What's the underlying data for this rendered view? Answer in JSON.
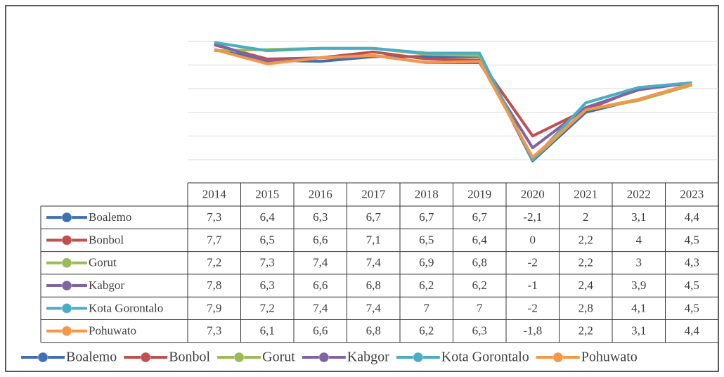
{
  "chart_data": {
    "type": "line",
    "categories": [
      "2014",
      "2015",
      "2016",
      "2017",
      "2018",
      "2019",
      "2020",
      "2021",
      "2022",
      "2023"
    ],
    "ylim": [
      -2,
      10
    ],
    "yticks": [
      -2,
      0,
      2,
      4,
      6,
      8
    ],
    "grid": true,
    "series": [
      {
        "name": "Boalemo",
        "color": "#3f6fb4",
        "values": [
          7.3,
          6.4,
          6.3,
          6.7,
          6.7,
          6.7,
          -2.1,
          2,
          3.1,
          4.4
        ],
        "value_labels": [
          "7,3",
          "6,4",
          "6,3",
          "6,7",
          "6,7",
          "6,7",
          "-2,1",
          "2",
          "3,1",
          "4,4"
        ]
      },
      {
        "name": "Bonbol",
        "color": "#c0504d",
        "values": [
          7.7,
          6.5,
          6.6,
          7.1,
          6.5,
          6.4,
          0,
          2.2,
          4,
          4.5
        ],
        "value_labels": [
          "7,7",
          "6,5",
          "6,6",
          "7,1",
          "6,5",
          "6,4",
          "0",
          "2,2",
          "4",
          "4,5"
        ]
      },
      {
        "name": "Gorut",
        "color": "#9bbb59",
        "values": [
          7.2,
          7.3,
          7.4,
          7.4,
          6.9,
          6.8,
          -2,
          2.2,
          3,
          4.3
        ],
        "value_labels": [
          "7,2",
          "7,3",
          "7,4",
          "7,4",
          "6,9",
          "6,8",
          "-2",
          "2,2",
          "3",
          "4,3"
        ]
      },
      {
        "name": "Kabgor",
        "color": "#8064a2",
        "values": [
          7.8,
          6.3,
          6.6,
          6.8,
          6.2,
          6.2,
          -1,
          2.4,
          3.9,
          4.5
        ],
        "value_labels": [
          "7,8",
          "6,3",
          "6,6",
          "6,8",
          "6,2",
          "6,2",
          "-1",
          "2,4",
          "3,9",
          "4,5"
        ]
      },
      {
        "name": "Kota Gorontalo",
        "color": "#4bacc6",
        "values": [
          7.9,
          7.2,
          7.4,
          7.4,
          7,
          7,
          -2,
          2.8,
          4.1,
          4.5
        ],
        "value_labels": [
          "7,9",
          "7,2",
          "7,4",
          "7,4",
          "7",
          "7",
          "-2",
          "2,8",
          "4,1",
          "4,5"
        ]
      },
      {
        "name": "Pohuwato",
        "color": "#f79646",
        "values": [
          7.3,
          6.1,
          6.6,
          6.8,
          6.2,
          6.3,
          -1.8,
          2.2,
          3.1,
          4.4
        ],
        "value_labels": [
          "7,3",
          "6,1",
          "6,6",
          "6,8",
          "6,2",
          "6,3",
          "-1,8",
          "2,2",
          "3,1",
          "4,4"
        ]
      }
    ]
  }
}
